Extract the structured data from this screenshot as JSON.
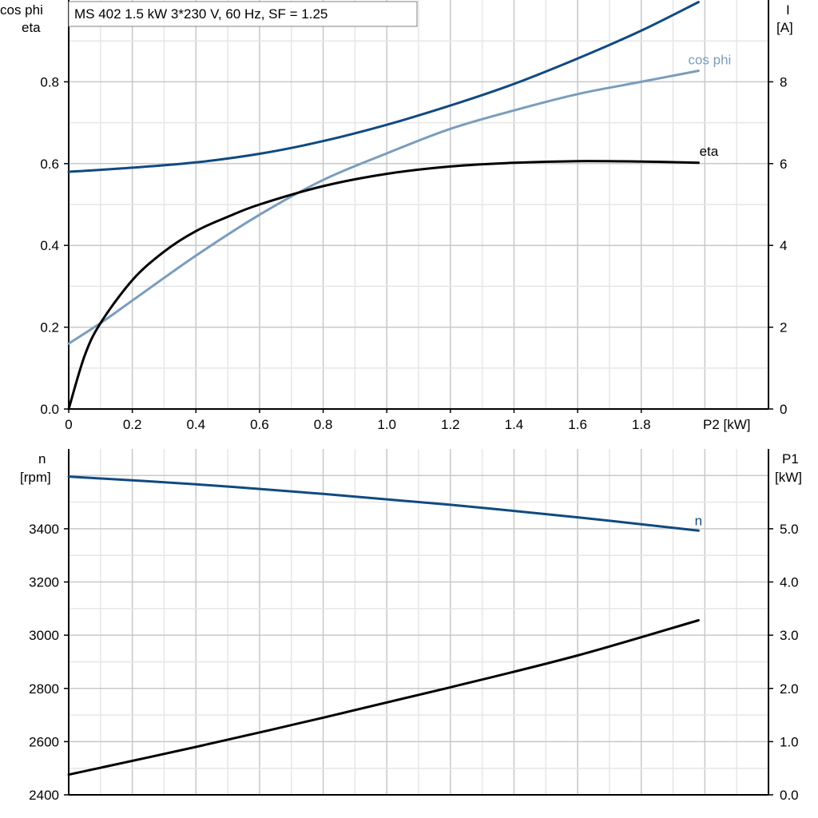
{
  "title": "MS 402   1.5 kW   3*230 V, 60 Hz, SF = 1.25",
  "colors": {
    "dark_blue": "#0f4a80",
    "light_blue": "#7a9dbc",
    "black": "#000000",
    "grid_major": "#c8c8c8",
    "grid_minor": "#e6e6e6"
  },
  "top_axis_labels": {
    "left_line1": "cos phi",
    "left_line2": "eta",
    "right_line1": "I",
    "right_line2": "[A]",
    "x": "P2 [kW]"
  },
  "bottom_axis_labels": {
    "left_line1": "n",
    "left_line2": "[rpm]",
    "right_line1": "P1",
    "right_line2": "[kW]"
  },
  "chart_data": [
    {
      "type": "line",
      "xlabel": "P2 [kW]",
      "ylabel": "cos phi / eta",
      "y2label": "I [A]",
      "xlim": [
        0,
        2.2
      ],
      "ylim": [
        0,
        1.0
      ],
      "y2lim": [
        0,
        10
      ],
      "x_ticks": [
        "0",
        "0.2",
        "0.4",
        "0.6",
        "0.8",
        "1.0",
        "1.2",
        "1.4",
        "1.6",
        "1.8"
      ],
      "y_ticks": [
        "0.0",
        "0.2",
        "0.4",
        "0.6",
        "0.8"
      ],
      "y2_ticks": [
        "0",
        "2",
        "4",
        "6",
        "8"
      ],
      "grid": true,
      "series": [
        {
          "name": "I",
          "axis": "right",
          "color": "#0f4a80",
          "x": [
            0,
            0.2,
            0.4,
            0.6,
            0.8,
            1.0,
            1.2,
            1.4,
            1.6,
            1.8,
            1.98
          ],
          "y": [
            5.8,
            5.9,
            6.03,
            6.24,
            6.55,
            6.95,
            7.42,
            7.95,
            8.57,
            9.25,
            9.95
          ]
        },
        {
          "name": "cos phi",
          "axis": "left",
          "color": "#7a9dbc",
          "x": [
            0,
            0.1,
            0.2,
            0.4,
            0.6,
            0.8,
            1.0,
            1.2,
            1.4,
            1.6,
            1.8,
            1.98
          ],
          "y": [
            0.16,
            0.21,
            0.265,
            0.375,
            0.475,
            0.56,
            0.625,
            0.685,
            0.73,
            0.77,
            0.8,
            0.827
          ]
        },
        {
          "name": "eta",
          "axis": "left",
          "color": "#000000",
          "x": [
            0,
            0.05,
            0.1,
            0.2,
            0.3,
            0.4,
            0.5,
            0.6,
            0.8,
            1.0,
            1.2,
            1.4,
            1.6,
            1.8,
            1.98
          ],
          "y": [
            0,
            0.13,
            0.21,
            0.315,
            0.385,
            0.435,
            0.47,
            0.5,
            0.545,
            0.575,
            0.593,
            0.602,
            0.606,
            0.605,
            0.602
          ]
        }
      ]
    },
    {
      "type": "line",
      "xlabel": "",
      "ylabel": "n [rpm]",
      "y2label": "P1 [kW]",
      "xlim": [
        0,
        2.2
      ],
      "ylim": [
        2400,
        3700
      ],
      "y2lim": [
        0,
        6.5
      ],
      "y_ticks": [
        "2400",
        "2600",
        "2800",
        "3000",
        "3200",
        "3400"
      ],
      "y2_ticks": [
        "0.0",
        "1.0",
        "2.0",
        "3.0",
        "4.0",
        "5.0"
      ],
      "grid": true,
      "series": [
        {
          "name": "n",
          "axis": "left",
          "color": "#0f4a80",
          "x": [
            0,
            0.4,
            0.8,
            1.2,
            1.6,
            1.98
          ],
          "y": [
            3596,
            3567,
            3531,
            3490,
            3443,
            3393
          ]
        },
        {
          "axis": "right",
          "color": "#000000",
          "x": [
            0,
            0.4,
            0.8,
            1.2,
            1.6,
            1.98
          ],
          "y": [
            0.38,
            0.9,
            1.45,
            2.02,
            2.62,
            3.28
          ]
        }
      ]
    }
  ]
}
